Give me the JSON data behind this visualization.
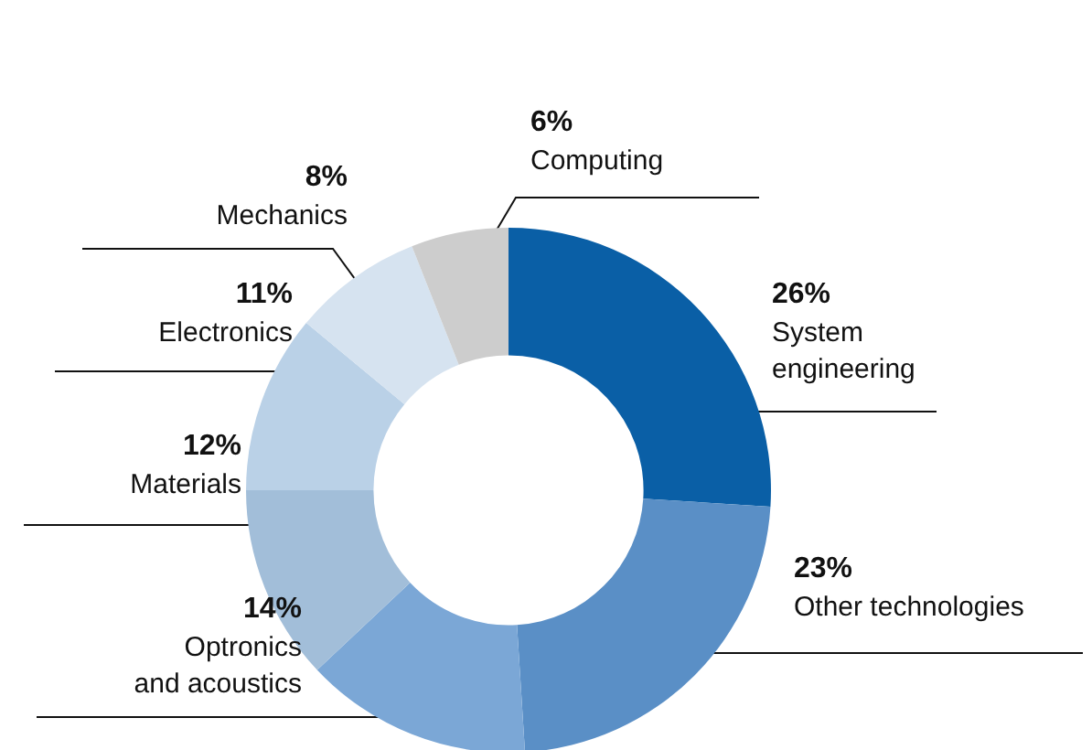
{
  "chart_data": {
    "type": "donut",
    "categories": [
      "System engineering",
      "Other technologies",
      "Optronics and acoustics",
      "Materials",
      "Electronics",
      "Mechanics",
      "Computing"
    ],
    "values": [
      26,
      23,
      14,
      12,
      11,
      8,
      6
    ],
    "colors": [
      "#0a5fa6",
      "#5a8fc6",
      "#7ba7d6",
      "#a2bed9",
      "#bad1e7",
      "#d6e3f0",
      "#cdcdcd"
    ],
    "value_labels": [
      "26%",
      "23%",
      "14%",
      "12%",
      "11%",
      "8%",
      "6%"
    ],
    "legend": false
  }
}
